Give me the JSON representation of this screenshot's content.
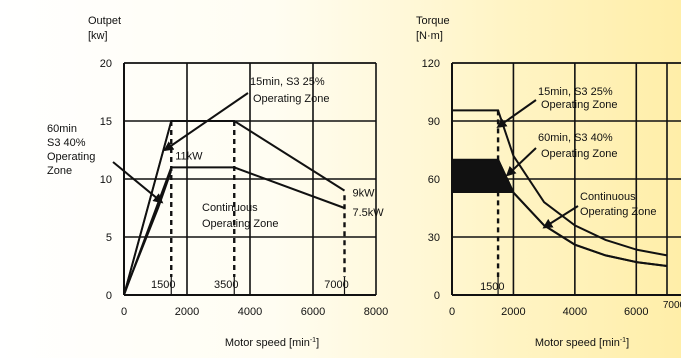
{
  "chart_data": [
    {
      "type": "line",
      "ylabel": "Outpet",
      "yunit": "[kw]",
      "xlabel_main": "Motor speed [min",
      "xlabel_sup": "-1",
      "xlabel_tail": "]",
      "xlim": [
        0,
        8000
      ],
      "ylim": [
        0,
        20
      ],
      "grid": true,
      "xticks": [
        0,
        2000,
        4000,
        6000,
        8000
      ],
      "yticks": [
        0,
        5,
        10,
        15,
        20
      ],
      "series": [
        {
          "points": [
            [
              0,
              0
            ],
            [
              1500,
              15
            ],
            [
              3500,
              15
            ],
            [
              7000,
              9
            ]
          ]
        },
        {
          "points": [
            [
              0,
              0
            ],
            [
              1500,
              11
            ],
            [
              3500,
              11
            ],
            [
              7000,
              7.5
            ]
          ]
        }
      ],
      "filled_region": {
        "points": [
          [
            0,
            0
          ],
          [
            1100,
            7.2
          ],
          [
            1500,
            11
          ],
          [
            1500,
            11
          ],
          [
            0,
            0
          ]
        ],
        "desc_points": [
          [
            0,
            0
          ],
          [
            1500,
            11
          ],
          [
            1500,
            9.2
          ],
          [
            1200,
            8.0
          ]
        ]
      },
      "vlines": [
        1500,
        3500,
        7000
      ],
      "vline_labels": [
        "1500",
        "3500",
        "7000"
      ],
      "annotations": {
        "zone_60min": [
          "60min",
          "S3 40%",
          "Operating",
          "Zone"
        ],
        "zone_15min": [
          "15min, S3 25%",
          "Operating Zone"
        ],
        "continuous": [
          "Continuous",
          "Operating Zone"
        ],
        "kw11": "11kW",
        "kw9": "9kW",
        "kw75": "7.5kW"
      }
    },
    {
      "type": "line",
      "ylabel": "Torque",
      "yunit": "[N·m]",
      "xlabel_main": "Motor speed [min",
      "xlabel_sup": "-1",
      "xlabel_tail": "]",
      "xlim": [
        0,
        7000
      ],
      "ylim": [
        0,
        120
      ],
      "grid": true,
      "xticks": [
        0,
        2000,
        4000,
        6000,
        7000
      ],
      "yticks": [
        0,
        30,
        60,
        90,
        120
      ],
      "series": [
        {
          "points": [
            [
              0,
              95.5
            ],
            [
              1500,
              95.5
            ],
            [
              2000,
              72
            ],
            [
              3000,
              48
            ],
            [
              4000,
              36
            ],
            [
              5000,
              28.5
            ],
            [
              6000,
              23.5
            ],
            [
              7000,
              20.5
            ]
          ]
        },
        {
          "points": [
            [
              0,
              70
            ],
            [
              1500,
              70
            ],
            [
              2000,
              53
            ],
            [
              3000,
              36
            ],
            [
              4000,
              26
            ],
            [
              5000,
              20.5
            ],
            [
              6000,
              17
            ],
            [
              7000,
              15
            ]
          ]
        },
        {
          "points": [
            [
              1500,
              70
            ],
            [
              2000,
              53
            ],
            [
              3000,
              36
            ],
            [
              4000,
              26
            ],
            [
              5000,
              20.5
            ],
            [
              6000,
              17
            ],
            [
              7000,
              15
            ]
          ]
        }
      ],
      "filled_region": {
        "points": [
          [
            0,
            70
          ],
          [
            1500,
            70
          ],
          [
            2000,
            53
          ],
          [
            0,
            53
          ]
        ]
      },
      "vlines": [
        1500
      ],
      "vline_labels": [
        "1500"
      ],
      "annotations": {
        "zone_15min": [
          "15min, S3 25%",
          "Operating Zone"
        ],
        "zone_60min": [
          "60min, S3 40%",
          "Operating Zone"
        ],
        "continuous": [
          "Continuous",
          "Operating Zone"
        ]
      }
    }
  ]
}
